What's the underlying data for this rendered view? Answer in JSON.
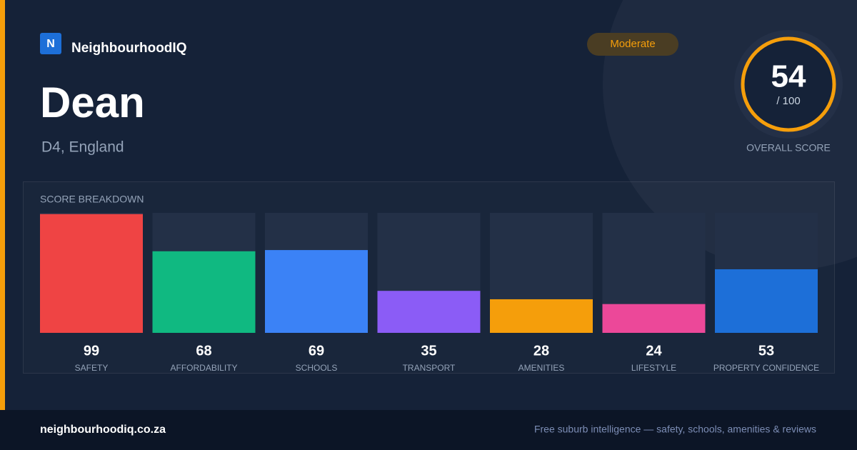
{
  "brand": "NeighbourhoodIQ",
  "logo_letter": "N",
  "title": "Dean",
  "subtitle": "D4, England",
  "badge": "Moderate",
  "overall": {
    "score": 54,
    "out_of": "/ 100",
    "label": "OVERALL SCORE"
  },
  "chart_data": {
    "type": "bar",
    "title": "SCORE BREAKDOWN",
    "categories": [
      "SAFETY",
      "AFFORDABILITY",
      "SCHOOLS",
      "TRANSPORT",
      "AMENITIES",
      "LIFESTYLE",
      "PROPERTY CONFIDENCE"
    ],
    "values": [
      99,
      68,
      69,
      35,
      28,
      24,
      53
    ],
    "colors": [
      "#ef4444",
      "#10b981",
      "#3b82f6",
      "#8b5cf6",
      "#f59e0b",
      "#ec4899",
      "#1d6fd8"
    ],
    "ylim": [
      0,
      100
    ]
  },
  "footer": {
    "site": "neighbourhoodiq.co.za",
    "tagline": "Free suburb intelligence — safety, schools, amenities & reviews"
  }
}
